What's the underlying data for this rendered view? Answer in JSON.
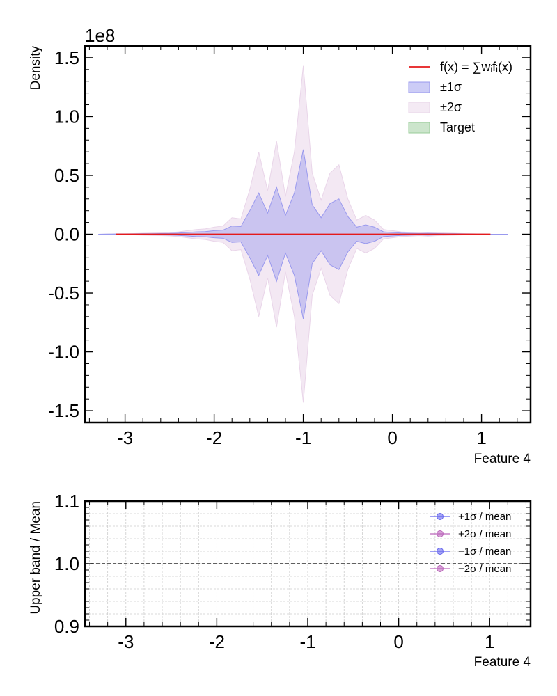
{
  "chart_data": [
    {
      "type": "area",
      "panel": "top",
      "ylabel": "Density",
      "xlabel": "Feature 4",
      "scale_label": "1e8",
      "xlim": [
        -3.45,
        1.55
      ],
      "ylim": [
        -1.6,
        1.6
      ],
      "yscale": 100000000,
      "xticks": [
        -3,
        -2,
        -1,
        0,
        1
      ],
      "xtick_labels": [
        "-3",
        "-2",
        "-1",
        "0",
        "1"
      ],
      "yticks": [
        -1.5,
        -1.0,
        -0.5,
        0.0,
        0.5,
        1.0,
        1.5
      ],
      "ytick_labels": [
        "-1.5",
        "-1.0",
        "-0.5",
        "0.0",
        "0.5",
        "1.0",
        "1.5"
      ],
      "grid": false,
      "legend_position": "top-right",
      "legend": [
        {
          "label": "f(x) = ∑wᵢfᵢ(x)",
          "kind": "line",
          "color": "#e41a1c"
        },
        {
          "label": "±1σ",
          "kind": "patch",
          "color": "#9999ee"
        },
        {
          "label": "±2σ",
          "kind": "patch",
          "color": "#e9d5e9"
        },
        {
          "label": "Target",
          "kind": "patch",
          "color": "#99cc99"
        }
      ],
      "x": [
        -3.3,
        -3.2,
        -3.1,
        -3.0,
        -2.9,
        -2.8,
        -2.7,
        -2.6,
        -2.5,
        -2.4,
        -2.3,
        -2.2,
        -2.1,
        -2.0,
        -1.9,
        -1.8,
        -1.7,
        -1.6,
        -1.5,
        -1.4,
        -1.3,
        -1.2,
        -1.1,
        -1.0,
        -0.9,
        -0.8,
        -0.7,
        -0.6,
        -0.5,
        -0.4,
        -0.3,
        -0.2,
        -0.1,
        0.0,
        0.1,
        0.2,
        0.3,
        0.4,
        0.5,
        0.6,
        0.7,
        0.8,
        0.9,
        1.0,
        1.1,
        1.2,
        1.3
      ],
      "series": [
        {
          "name": "f(x) = ∑wᵢfᵢ(x)",
          "kind": "mean",
          "color": "#e41a1c",
          "values": [
            0.0,
            0.0,
            0.0,
            0.0,
            0.0,
            0.0,
            0.0,
            0.0,
            0.0,
            0.0,
            0.0,
            0.0,
            0.0,
            0.0,
            0.0,
            0.0,
            0.0,
            0.0,
            0.0,
            0.0,
            0.0,
            0.0,
            0.0,
            0.0,
            0.0,
            0.0,
            0.0,
            0.0,
            0.0,
            0.0,
            0.0,
            0.0,
            0.0,
            0.0,
            0.0,
            0.0,
            0.0,
            0.0,
            0.0,
            0.0,
            0.0,
            0.0,
            0.0,
            0.0,
            0.0,
            0.0,
            0.0
          ]
        },
        {
          "name": "±1σ",
          "kind": "band",
          "color": "#9999ee",
          "values": [
            0.0,
            0.001,
            0.002,
            0.002,
            0.003,
            0.004,
            0.005,
            0.006,
            0.007,
            0.01,
            0.015,
            0.02,
            0.022,
            0.03,
            0.035,
            0.07,
            0.065,
            0.2,
            0.35,
            0.18,
            0.4,
            0.16,
            0.35,
            0.72,
            0.25,
            0.14,
            0.26,
            0.3,
            0.15,
            0.06,
            0.08,
            0.06,
            0.02,
            0.015,
            0.01,
            0.008,
            0.006,
            0.008,
            0.006,
            0.005,
            0.004,
            0.003,
            0.002,
            0.001,
            0.0,
            0.0,
            0.0
          ]
        },
        {
          "name": "±2σ",
          "kind": "band",
          "color": "#e9d5e9",
          "values": [
            0.0,
            0.002,
            0.004,
            0.004,
            0.006,
            0.008,
            0.01,
            0.012,
            0.014,
            0.02,
            0.03,
            0.04,
            0.045,
            0.06,
            0.07,
            0.14,
            0.13,
            0.38,
            0.7,
            0.37,
            0.79,
            0.32,
            0.7,
            1.43,
            0.52,
            0.29,
            0.52,
            0.59,
            0.3,
            0.12,
            0.16,
            0.12,
            0.04,
            0.03,
            0.02,
            0.016,
            0.012,
            0.016,
            0.012,
            0.01,
            0.008,
            0.006,
            0.004,
            0.002,
            0.0,
            0.0,
            0.0
          ]
        }
      ]
    },
    {
      "type": "line",
      "panel": "ratio",
      "ylabel": "Upper band / Mean",
      "xlabel": "Feature 4",
      "xlim": [
        -3.45,
        1.45
      ],
      "ylim": [
        0.9,
        1.1
      ],
      "xticks": [
        -3,
        -2,
        -1,
        0,
        1
      ],
      "xtick_labels": [
        "-3",
        "-2",
        "-1",
        "0",
        "1"
      ],
      "yticks": [
        0.9,
        1.0,
        1.1
      ],
      "ytick_labels": [
        "0.9",
        "1.0",
        "1.1"
      ],
      "grid": true,
      "reference_line": 1.0,
      "legend_position": "top-right",
      "legend": [
        {
          "label": "+1σ / mean",
          "color": "#6666ee"
        },
        {
          "label": "+2σ / mean",
          "color": "#bb66bb"
        },
        {
          "label": "−1σ / mean",
          "color": "#6666ee"
        },
        {
          "label": "−2σ / mean",
          "color": "#bb66bb"
        }
      ]
    }
  ]
}
